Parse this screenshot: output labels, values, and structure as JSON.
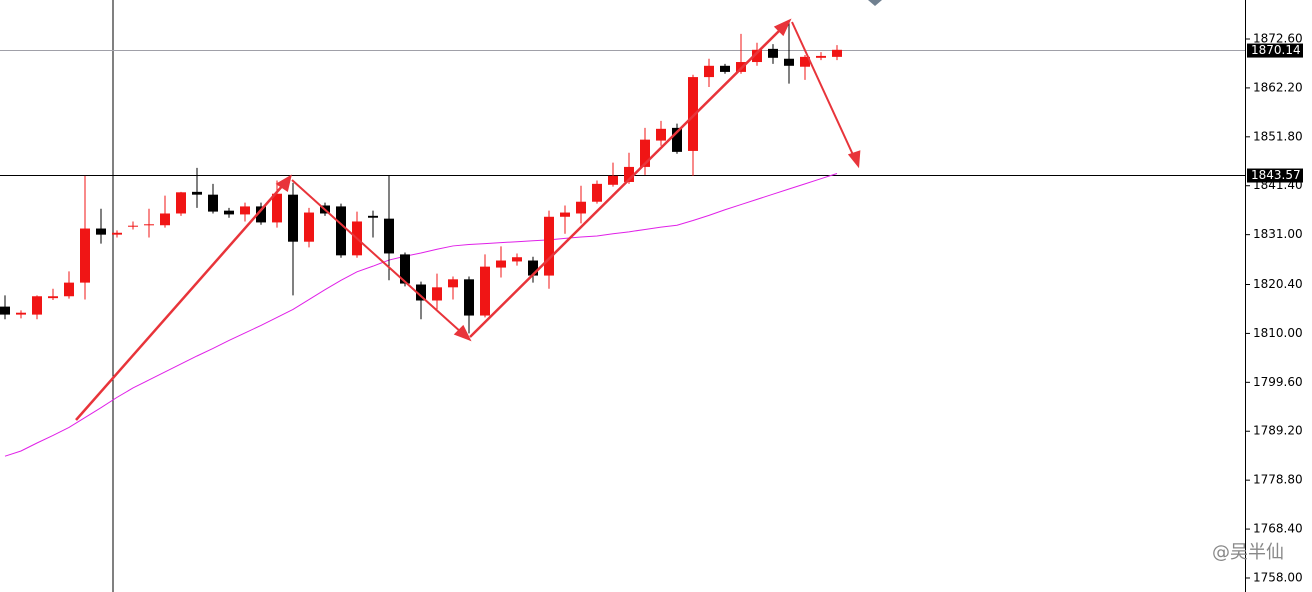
{
  "chart_data": {
    "type": "candlestick",
    "up_color": "#f01515",
    "down_color": "#000000",
    "open": [
      1815.7,
      1814.0,
      1814.0,
      1817.5,
      1817.9,
      1820.8,
      1832.3,
      1831.0,
      1832.7,
      1833.0,
      1833.0,
      1835.5,
      1840.1,
      1839.5,
      1836.1,
      1835.3,
      1837.0,
      1833.6,
      1839.5,
      1829.5,
      1837.2,
      1837.0,
      1826.6,
      1835.0,
      1834.4,
      1826.8,
      1820.4,
      1817.0,
      1819.8,
      1821.5,
      1813.8,
      1824.0,
      1825.3,
      1825.5,
      1822.3,
      1834.8,
      1835.5,
      1838.0,
      1841.6,
      1842.2,
      1845.4,
      1851.0,
      1853.7,
      1848.8,
      1864.5,
      1866.9,
      1865.6,
      1867.7,
      1870.5,
      1868.4,
      1866.7,
      1868.6,
      1868.8
    ],
    "high": [
      1818.1,
      1814.9,
      1818.1,
      1819.5,
      1823.2,
      1843.5,
      1836.5,
      1831.9,
      1833.8,
      1836.5,
      1839.3,
      1840.1,
      1845.2,
      1841.8,
      1836.7,
      1837.8,
      1837.8,
      1842.5,
      1842.0,
      1836.7,
      1837.8,
      1837.6,
      1835.9,
      1836.1,
      1843.5,
      1827.2,
      1821.0,
      1822.7,
      1822.1,
      1822.1,
      1826.8,
      1828.5,
      1827.0,
      1826.3,
      1836.1,
      1837.2,
      1841.4,
      1842.5,
      1846.3,
      1848.4,
      1853.7,
      1855.2,
      1854.6,
      1865.0,
      1868.4,
      1867.3,
      1873.7,
      1871.8,
      1871.5,
      1876.2,
      1869.2,
      1869.8,
      1871.3
    ],
    "low": [
      1813.0,
      1813.2,
      1813.0,
      1817.1,
      1817.4,
      1817.2,
      1829.1,
      1830.4,
      1832.1,
      1830.4,
      1832.5,
      1835.0,
      1836.7,
      1835.5,
      1834.6,
      1833.8,
      1833.1,
      1832.5,
      1818.1,
      1828.3,
      1835.0,
      1826.1,
      1826.1,
      1830.4,
      1821.3,
      1820.0,
      1813.0,
      1815.1,
      1817.2,
      1810.0,
      1813.4,
      1821.9,
      1824.4,
      1820.8,
      1819.5,
      1831.2,
      1833.4,
      1837.6,
      1841.2,
      1841.8,
      1843.7,
      1849.9,
      1848.2,
      1843.5,
      1862.4,
      1865.2,
      1865.2,
      1866.9,
      1867.3,
      1863.1,
      1863.9,
      1868.1,
      1868.1
    ],
    "close": [
      1814.0,
      1814.4,
      1817.9,
      1817.9,
      1820.8,
      1832.3,
      1831.0,
      1831.4,
      1832.9,
      1833.2,
      1835.5,
      1840.0,
      1839.5,
      1835.9,
      1835.3,
      1837.0,
      1833.6,
      1839.7,
      1829.5,
      1835.7,
      1835.5,
      1826.6,
      1833.8,
      1834.6,
      1827.0,
      1820.6,
      1817.0,
      1819.8,
      1821.5,
      1813.8,
      1824.2,
      1825.5,
      1826.2,
      1822.3,
      1834.8,
      1835.7,
      1838.0,
      1841.8,
      1843.5,
      1845.4,
      1851.2,
      1853.5,
      1848.6,
      1864.5,
      1866.9,
      1865.6,
      1867.7,
      1870.3,
      1868.6,
      1866.9,
      1868.8,
      1869.0,
      1870.3
    ],
    "moving_average": {
      "color": "#e020e8",
      "values": [
        1783.9,
        1785.0,
        1786.7,
        1788.3,
        1790.0,
        1792.1,
        1794.2,
        1796.4,
        1798.4,
        1800.1,
        1801.8,
        1803.5,
        1805.2,
        1806.8,
        1808.5,
        1810.1,
        1811.7,
        1813.4,
        1815.1,
        1817.2,
        1819.3,
        1821.3,
        1823.1,
        1824.3,
        1825.6,
        1826.4,
        1827.1,
        1827.9,
        1828.6,
        1828.9,
        1829.1,
        1829.3,
        1829.5,
        1829.7,
        1829.9,
        1830.2,
        1830.5,
        1830.7,
        1831.2,
        1831.6,
        1832.1,
        1832.6,
        1833.0,
        1834.0,
        1835.1,
        1836.3,
        1837.4,
        1838.5,
        1839.6,
        1840.7,
        1841.8,
        1842.9,
        1844.0
      ]
    },
    "ylim": [
      1755.02,
      1880.89
    ],
    "yticks": [
      {
        "value": 1872.6,
        "label": "1872.60"
      },
      {
        "value": 1862.2,
        "label": "1862.20"
      },
      {
        "value": 1851.8,
        "label": "1851.80"
      },
      {
        "value": 1841.4,
        "label": "1841.40"
      },
      {
        "value": 1831.0,
        "label": "1831.00"
      },
      {
        "value": 1820.4,
        "label": "1820.40"
      },
      {
        "value": 1810.0,
        "label": "1810.00"
      },
      {
        "value": 1799.6,
        "label": "1799.60"
      },
      {
        "value": 1789.2,
        "label": "1789.20"
      },
      {
        "value": 1778.8,
        "label": "1778.80"
      },
      {
        "value": 1768.4,
        "label": "1768.40"
      },
      {
        "value": 1758.0,
        "label": "1758.00"
      }
    ],
    "price_line": {
      "value": 1870.14,
      "color": "#a0a0a8"
    },
    "crosshair": {
      "value": 1843.57,
      "color": "#000000"
    },
    "watermark": "@吴半仙"
  }
}
